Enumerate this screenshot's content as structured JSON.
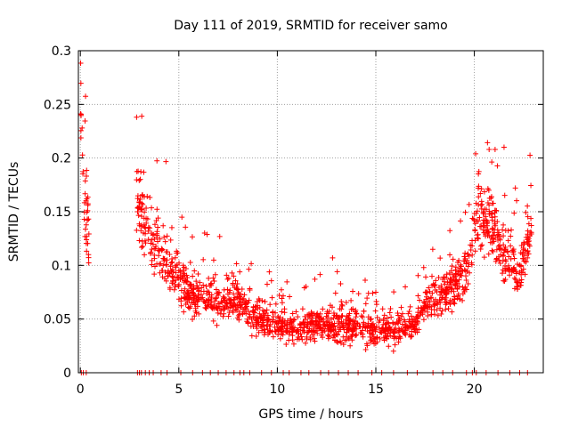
{
  "chart_data": {
    "type": "scatter",
    "title": "Day 111 of 2019, SRMTID for receiver samo",
    "xlabel": "GPS time / hours",
    "ylabel": "SRMTID / TECUs",
    "xlim": [
      -0.1,
      23.5
    ],
    "ylim": [
      0,
      0.3
    ],
    "x_ticks": [
      0,
      5,
      10,
      15,
      20
    ],
    "y_ticks": [
      0,
      0.05,
      0.1,
      0.15,
      0.2,
      0.25,
      0.3
    ],
    "x_tick_labels": [
      "0",
      "5",
      "10",
      "15",
      "20"
    ],
    "y_tick_labels": [
      "0",
      "0.05",
      "0.1",
      "0.15",
      "0.2",
      "0.25",
      "0.3"
    ],
    "grid": true,
    "marker": "+",
    "series_color": "#ff0000",
    "grid_color": "#a0a0a0",
    "envelope": [
      {
        "x": 0.0,
        "y": 0.25,
        "spread": 0.03
      },
      {
        "x": 0.2,
        "y": 0.17,
        "spread": 0.06
      },
      {
        "x": 0.4,
        "y": 0.13,
        "spread": 0.06
      },
      {
        "x": 2.9,
        "y": 0.16,
        "spread": 0.07
      },
      {
        "x": 3.5,
        "y": 0.13,
        "spread": 0.06
      },
      {
        "x": 4.0,
        "y": 0.12,
        "spread": 0.06
      },
      {
        "x": 4.5,
        "y": 0.1,
        "spread": 0.05
      },
      {
        "x": 5.0,
        "y": 0.085,
        "spread": 0.04
      },
      {
        "x": 6.0,
        "y": 0.07,
        "spread": 0.035
      },
      {
        "x": 7.0,
        "y": 0.065,
        "spread": 0.03
      },
      {
        "x": 8.0,
        "y": 0.07,
        "spread": 0.035
      },
      {
        "x": 9.0,
        "y": 0.05,
        "spread": 0.03
      },
      {
        "x": 10.0,
        "y": 0.045,
        "spread": 0.028
      },
      {
        "x": 11.0,
        "y": 0.042,
        "spread": 0.026
      },
      {
        "x": 12.0,
        "y": 0.045,
        "spread": 0.028
      },
      {
        "x": 13.0,
        "y": 0.045,
        "spread": 0.03
      },
      {
        "x": 14.0,
        "y": 0.042,
        "spread": 0.028
      },
      {
        "x": 15.0,
        "y": 0.04,
        "spread": 0.026
      },
      {
        "x": 16.0,
        "y": 0.04,
        "spread": 0.026
      },
      {
        "x": 17.0,
        "y": 0.045,
        "spread": 0.028
      },
      {
        "x": 17.5,
        "y": 0.065,
        "spread": 0.03
      },
      {
        "x": 18.5,
        "y": 0.075,
        "spread": 0.035
      },
      {
        "x": 19.5,
        "y": 0.09,
        "spread": 0.04
      },
      {
        "x": 20.2,
        "y": 0.15,
        "spread": 0.06
      },
      {
        "x": 20.8,
        "y": 0.14,
        "spread": 0.05
      },
      {
        "x": 21.5,
        "y": 0.11,
        "spread": 0.05
      },
      {
        "x": 22.3,
        "y": 0.09,
        "spread": 0.04
      },
      {
        "x": 22.8,
        "y": 0.13,
        "spread": 0.04
      }
    ],
    "segments": [
      [
        0.0,
        0.45
      ],
      [
        2.85,
        22.9
      ]
    ],
    "point_count": 1700,
    "zero_markers": [
      0.05,
      0.15,
      0.3,
      2.9,
      3.0,
      3.1,
      3.3,
      3.5,
      3.7,
      4.1,
      4.4,
      5.1,
      5.7,
      6.2,
      6.6,
      7.0,
      7.4,
      7.8,
      8.1,
      8.3,
      8.6,
      9.2,
      9.7,
      10.3,
      10.6,
      11.2,
      11.6,
      12.2,
      12.6,
      13.1,
      13.6,
      14.1,
      14.8,
      15.3,
      15.9,
      16.6,
      17.1,
      17.9,
      18.4,
      18.9,
      19.6,
      19.9,
      20.1,
      20.6,
      21.2,
      21.8,
      22.3,
      22.7
    ]
  }
}
